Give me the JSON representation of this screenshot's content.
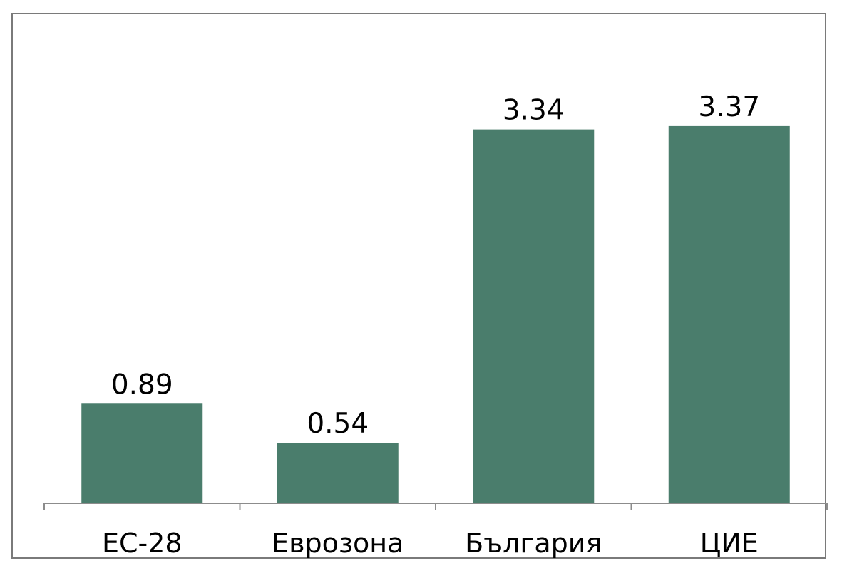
{
  "chart_data": {
    "type": "bar",
    "title": "",
    "xlabel": "",
    "ylabel": "",
    "categories": [
      "ЕС-28",
      "Еврозона",
      "България",
      "ЦИЕ"
    ],
    "values": [
      0.89,
      0.54,
      3.34,
      3.37
    ],
    "value_labels": [
      "0.89",
      "0.54",
      "3.34",
      "3.37"
    ],
    "ylim": [
      0,
      4.3
    ],
    "grid": false,
    "legend": "none",
    "bar_color": "#4a7d6c",
    "axis_color": "#8c8c8c"
  }
}
